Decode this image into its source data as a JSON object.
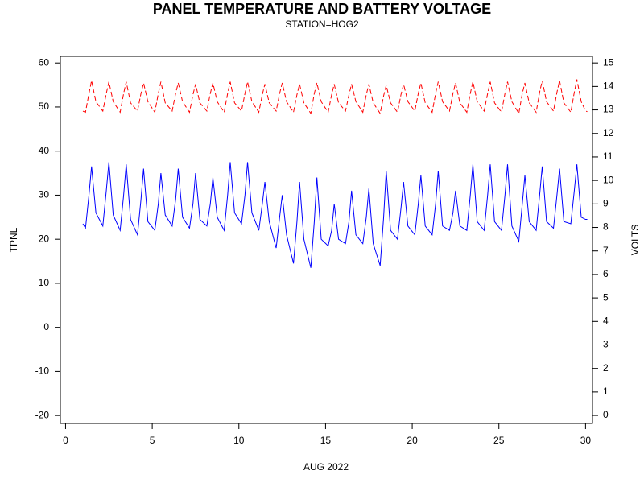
{
  "chart_data": {
    "type": "line",
    "title": "PANEL TEMPERATURE AND BATTERY VOLTAGE",
    "subtitle": "STATION=HOG2",
    "xlabel": "AUG 2022",
    "ylabel": "TPNL",
    "y2label": "VOLTS",
    "xlim": [
      -0.3,
      30.4
    ],
    "xticks": [
      0,
      5,
      10,
      15,
      20,
      25,
      30
    ],
    "ylim": [
      -21.8,
      61.5
    ],
    "yticks": [
      -20,
      -10,
      0,
      10,
      20,
      30,
      40,
      50,
      60
    ],
    "y2lim": [
      -0.34,
      15.28
    ],
    "y2ticks": [
      0,
      1,
      2,
      3,
      4,
      5,
      6,
      7,
      8,
      9,
      10,
      11,
      12,
      13,
      14,
      15
    ],
    "x": [
      1.0,
      1.15,
      1.35,
      1.5,
      1.75,
      2.15,
      2.35,
      2.5,
      2.75,
      3.15,
      3.35,
      3.5,
      3.75,
      4.15,
      4.35,
      4.5,
      4.75,
      5.15,
      5.35,
      5.5,
      5.75,
      6.15,
      6.35,
      6.5,
      6.75,
      7.15,
      7.35,
      7.5,
      7.75,
      8.15,
      8.35,
      8.5,
      8.75,
      9.15,
      9.35,
      9.5,
      9.75,
      10.15,
      10.35,
      10.5,
      10.75,
      11.15,
      11.35,
      11.5,
      11.75,
      12.15,
      12.35,
      12.5,
      12.75,
      13.15,
      13.35,
      13.5,
      13.75,
      14.15,
      14.35,
      14.5,
      14.75,
      15.15,
      15.35,
      15.5,
      15.75,
      16.15,
      16.35,
      16.5,
      16.75,
      17.15,
      17.35,
      17.5,
      17.75,
      18.15,
      18.35,
      18.5,
      18.75,
      19.15,
      19.35,
      19.5,
      19.75,
      20.15,
      20.35,
      20.5,
      20.75,
      21.15,
      21.35,
      21.5,
      21.75,
      22.15,
      22.35,
      22.5,
      22.75,
      23.15,
      23.35,
      23.5,
      23.75,
      24.15,
      24.35,
      24.5,
      24.75,
      25.15,
      25.35,
      25.5,
      25.75,
      26.15,
      26.35,
      26.5,
      26.75,
      27.15,
      27.35,
      27.5,
      27.75,
      28.15,
      28.35,
      28.5,
      28.75,
      29.15,
      29.35,
      29.5,
      29.75,
      30.0,
      30.1
    ],
    "series": [
      {
        "color": "#0000ff",
        "axis": "y",
        "dash": false,
        "values": [
          23.5,
          22.5,
          30,
          36.5,
          26,
          23,
          31,
          37.5,
          25.5,
          22,
          30,
          37,
          24.5,
          21,
          29,
          36,
          24,
          22,
          28,
          35,
          25.5,
          23,
          29,
          36,
          25,
          22.5,
          28,
          35,
          24.5,
          23,
          28,
          34,
          25,
          22,
          30,
          37.5,
          26,
          23.5,
          30,
          37.5,
          26,
          22,
          28,
          33,
          24,
          18,
          25,
          30,
          21,
          14.5,
          24,
          33,
          20,
          13.5,
          24,
          34,
          20,
          18.5,
          22,
          28,
          20,
          19,
          24,
          31,
          21,
          19,
          25,
          31.5,
          19,
          14,
          25,
          35.5,
          22,
          20,
          27,
          33,
          23,
          21,
          28,
          34.5,
          23,
          21,
          28,
          35.5,
          23,
          22,
          26,
          31,
          23,
          22,
          30,
          37,
          24,
          22,
          30,
          37,
          24,
          22,
          30,
          37,
          23,
          19.5,
          28,
          34.5,
          24,
          22,
          30,
          36.5,
          24,
          22.5,
          30,
          36,
          24,
          23.5,
          31,
          37,
          25,
          24.5,
          24.5
        ]
      },
      {
        "color": "#ff0000",
        "axis": "y2",
        "dash": true,
        "values": [
          12.95,
          12.9,
          13.7,
          14.25,
          13.35,
          12.95,
          13.7,
          14.2,
          13.35,
          12.9,
          13.7,
          14.2,
          13.3,
          12.95,
          13.7,
          14.15,
          13.35,
          12.9,
          13.7,
          14.2,
          13.3,
          12.95,
          13.7,
          14.15,
          13.35,
          12.9,
          13.65,
          14.1,
          13.3,
          12.95,
          13.7,
          14.15,
          13.35,
          12.9,
          13.7,
          14.2,
          13.3,
          12.95,
          13.7,
          14.2,
          13.35,
          12.9,
          13.65,
          14.1,
          13.3,
          12.95,
          13.7,
          14.15,
          13.35,
          12.9,
          13.65,
          14.1,
          13.3,
          12.85,
          13.7,
          14.15,
          13.35,
          12.9,
          13.65,
          14.1,
          13.3,
          12.95,
          13.65,
          14.1,
          13.35,
          12.9,
          13.65,
          14.1,
          13.3,
          12.85,
          13.6,
          14.05,
          13.3,
          12.9,
          13.65,
          14.1,
          13.35,
          12.95,
          13.7,
          14.15,
          13.3,
          12.9,
          13.7,
          14.2,
          13.35,
          12.95,
          13.7,
          14.15,
          13.3,
          12.9,
          13.7,
          14.2,
          13.35,
          12.95,
          13.7,
          14.2,
          13.3,
          12.9,
          13.7,
          14.2,
          13.35,
          12.85,
          13.7,
          14.15,
          13.3,
          12.9,
          13.75,
          14.25,
          13.35,
          12.95,
          13.75,
          14.25,
          13.3,
          12.9,
          13.75,
          14.3,
          13.35,
          12.95,
          12.93
        ]
      }
    ]
  }
}
